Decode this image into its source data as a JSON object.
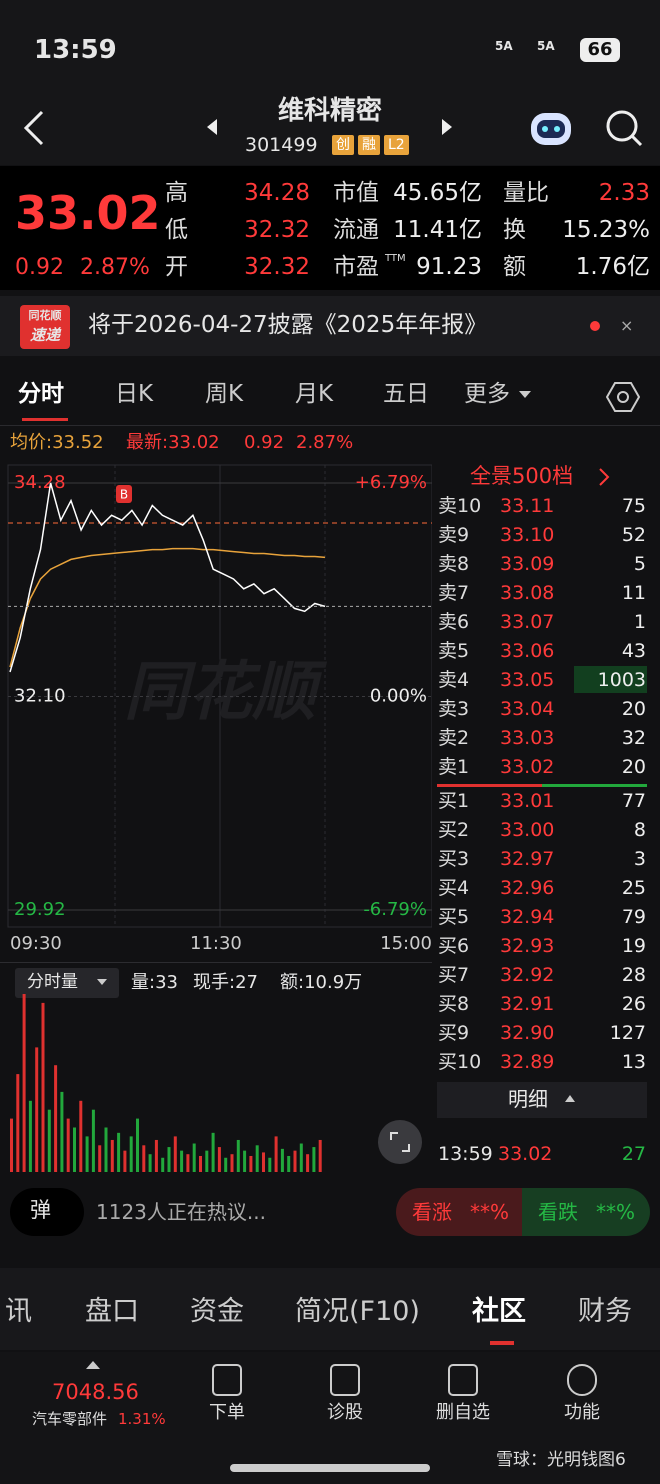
{
  "status": {
    "time": "13:59",
    "network": [
      "5A",
      "5A"
    ],
    "battery": "66"
  },
  "header": {
    "name": "维科精密",
    "code": "301499",
    "tags": [
      "创",
      "融",
      "L2"
    ]
  },
  "quote": {
    "price": "33.02",
    "change": "0.92",
    "change_pct": "2.87%",
    "stats": [
      [
        {
          "label": "高",
          "value": "34.28"
        },
        {
          "label": "市值",
          "value": "45.65亿"
        },
        {
          "label": "量比",
          "value": "2.33"
        }
      ],
      [
        {
          "label": "低",
          "value": "32.32"
        },
        {
          "label": "流通",
          "value": "11.41亿"
        },
        {
          "label": "换",
          "value": "15.23%"
        }
      ],
      [
        {
          "label": "开",
          "value": "32.32"
        },
        {
          "label": "市盈",
          "sup": "TTM",
          "value": "91.23"
        },
        {
          "label": "额",
          "value": "1.76亿"
        }
      ]
    ]
  },
  "notice": {
    "badge": [
      "同花顺",
      "速递"
    ],
    "text": "将于2026-04-27披露《2025年年报》"
  },
  "chart_tabs": [
    "分时",
    "日K",
    "周K",
    "月K",
    "五日",
    "更多"
  ],
  "intraday": {
    "avg_label": "均价:33.52",
    "latest_label": "最新:33.02",
    "change": "0.92",
    "change_pct": "2.87%",
    "ylim": [
      29.92,
      34.28
    ],
    "yticks": [
      34.28,
      {
        "value": 32.1,
        "label": "32.10"
      },
      29.92
    ],
    "pct_labels": [
      "+6.79%",
      "0.00%",
      "-6.79%"
    ],
    "xticks": [
      "09:30",
      "11:30",
      "15:00"
    ],
    "marker": "B",
    "watermark": "同花顺",
    "price": [
      32.35,
      32.7,
      33.2,
      33.6,
      34.28,
      33.9,
      34.1,
      33.8,
      34.0,
      33.85,
      33.95,
      33.9,
      34.0,
      33.85,
      34.05,
      33.95,
      33.9,
      33.85,
      33.95,
      33.7,
      33.4,
      33.35,
      33.3,
      33.2,
      33.25,
      33.15,
      33.2,
      33.1,
      33.0,
      32.97,
      33.05,
      33.02
    ],
    "avg": [
      32.4,
      32.8,
      33.1,
      33.3,
      33.4,
      33.45,
      33.5,
      33.52,
      33.54,
      33.55,
      33.56,
      33.57,
      33.58,
      33.59,
      33.6,
      33.6,
      33.61,
      33.61,
      33.61,
      33.6,
      33.6,
      33.59,
      33.58,
      33.57,
      33.56,
      33.56,
      33.55,
      33.54,
      33.54,
      33.53,
      33.53,
      33.52
    ]
  },
  "volume": {
    "label": "分时量",
    "stats": [
      "量:33",
      "现手:27",
      "额:10.9万"
    ],
    "ylim": [
      0,
      100
    ],
    "values": [
      30,
      55,
      100,
      40,
      70,
      95,
      35,
      60,
      45,
      30,
      25,
      40,
      20,
      35,
      15,
      25,
      18,
      22,
      12,
      20,
      30,
      15,
      10,
      18,
      8,
      14,
      20,
      12,
      10,
      16,
      9,
      12,
      22,
      14,
      8,
      10,
      18,
      12,
      9,
      15,
      11,
      8,
      20,
      13,
      9,
      12,
      16,
      10,
      14,
      18
    ],
    "colors": [
      "#e0312f",
      "#e0312f",
      "#e0312f",
      "#22a83c",
      "#e0312f",
      "#e0312f",
      "#22a83c",
      "#e0312f",
      "#22a83c",
      "#e0312f",
      "#22a83c",
      "#e0312f",
      "#22a83c",
      "#22a83c",
      "#e0312f",
      "#22a83c",
      "#e0312f",
      "#22a83c",
      "#e0312f",
      "#22a83c",
      "#22a83c",
      "#e0312f",
      "#22a83c",
      "#e0312f",
      "#22a83c",
      "#22a83c",
      "#e0312f",
      "#22a83c",
      "#e0312f",
      "#22a83c",
      "#e0312f",
      "#22a83c",
      "#22a83c",
      "#e0312f",
      "#22a83c",
      "#e0312f",
      "#22a83c",
      "#22a83c",
      "#e0312f",
      "#22a83c",
      "#e0312f",
      "#22a83c",
      "#e0312f",
      "#22a83c",
      "#22a83c",
      "#e0312f",
      "#22a83c",
      "#e0312f",
      "#22a83c",
      "#e0312f"
    ]
  },
  "order_book": {
    "title": "全景500档",
    "asks": [
      {
        "label": "卖10",
        "price": "33.11",
        "volume": 75
      },
      {
        "label": "卖9",
        "price": "33.10",
        "volume": 52
      },
      {
        "label": "卖8",
        "price": "33.09",
        "volume": 5
      },
      {
        "label": "卖7",
        "price": "33.08",
        "volume": 11
      },
      {
        "label": "卖6",
        "price": "33.07",
        "volume": 1
      },
      {
        "label": "卖5",
        "price": "33.06",
        "volume": 43
      },
      {
        "label": "卖4",
        "price": "33.05",
        "volume": 1003,
        "highlight": true
      },
      {
        "label": "卖3",
        "price": "33.04",
        "volume": 20
      },
      {
        "label": "卖2",
        "price": "33.03",
        "volume": 32
      },
      {
        "label": "卖1",
        "price": "33.02",
        "volume": 20
      }
    ],
    "bids": [
      {
        "label": "买1",
        "price": "33.01",
        "volume": 77
      },
      {
        "label": "买2",
        "price": "33.00",
        "volume": 8
      },
      {
        "label": "买3",
        "price": "32.97",
        "volume": 3
      },
      {
        "label": "买4",
        "price": "32.96",
        "volume": 25
      },
      {
        "label": "买5",
        "price": "32.94",
        "volume": 79
      },
      {
        "label": "买6",
        "price": "32.93",
        "volume": 19
      },
      {
        "label": "买7",
        "price": "32.92",
        "volume": 28
      },
      {
        "label": "买8",
        "price": "32.91",
        "volume": 26
      },
      {
        "label": "买9",
        "price": "32.90",
        "volume": 127
      },
      {
        "label": "买10",
        "price": "32.89",
        "volume": 13
      }
    ],
    "detail_title": "明细",
    "trades": [
      {
        "time": "13:59",
        "price": "33.02",
        "volume": 27
      }
    ]
  },
  "bottom": {
    "danmaku": "弹",
    "discussion": "1123人正在热议...",
    "bull": "看涨",
    "bull_pct": "**%",
    "bear": "看跌",
    "bear_pct": "**%"
  },
  "tabs": [
    "讯",
    "盘口",
    "资金",
    "简况(F10)",
    "社区",
    "财务"
  ],
  "footer": {
    "index_value": "7048.56",
    "sector": "汽车零部件",
    "sector_pct": "1.31%",
    "actions": [
      "下单",
      "诊股",
      "删自选",
      "功能"
    ]
  },
  "watermark": "雪球：光明钱图6"
}
